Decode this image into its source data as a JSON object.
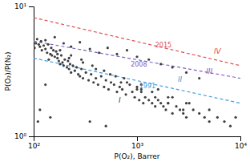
{
  "chart_data": {
    "type": "scatter",
    "log": true,
    "grid": false,
    "xlabel": "P(O₂), Barrer",
    "ylabel": "P(O₂)/P(N₂)",
    "xlim": [
      100,
      10000
    ],
    "ylim": [
      1,
      10
    ],
    "xticks": [
      {
        "value": 100,
        "label": "10²"
      },
      {
        "value": 1000,
        "label": "10³"
      },
      {
        "value": 10000,
        "label": "10⁴"
      }
    ],
    "yticks": [
      {
        "value": 1,
        "label": "10⁰"
      },
      {
        "value": 10,
        "label": "10¹"
      }
    ],
    "series": [
      {
        "type": "scatter",
        "marker": "circle",
        "color": "#404040",
        "x": [
          102,
          105,
          108,
          112,
          115,
          118,
          120,
          125,
          130,
          135,
          138,
          140,
          145,
          148,
          150,
          155,
          160,
          165,
          170,
          175,
          180,
          185,
          190,
          195,
          200,
          210,
          215,
          220,
          225,
          230,
          240,
          250,
          260,
          270,
          280,
          290,
          300,
          320,
          340,
          360,
          380,
          400,
          420,
          450,
          480,
          500,
          530,
          560,
          600,
          640,
          680,
          720,
          780,
          850,
          900,
          950,
          1000,
          1050,
          1100,
          1150,
          1200,
          1300,
          1400,
          1500,
          1600,
          1700,
          1800,
          1900,
          2000,
          2200,
          2400,
          2600,
          2800,
          3000,
          3500,
          4000,
          5000,
          6000,
          7000,
          8000,
          9000,
          110,
          130,
          160,
          195,
          230,
          280,
          350,
          430,
          520,
          640,
          800,
          1000,
          1300,
          1700,
          2200,
          3000,
          4000,
          130,
          170,
          220,
          300,
          400,
          550,
          750,
          1100,
          1600,
          2200,
          3200,
          115,
          145,
          180,
          230,
          290,
          370,
          480,
          620,
          800,
          1100,
          1500,
          2000,
          2800,
          4500,
          350,
          500,
          700,
          1000,
          1400,
          2000,
          3000,
          5000
        ],
        "values": [
          4.8,
          5.2,
          5.6,
          5.1,
          4.9,
          5.4,
          4.6,
          5.0,
          4.7,
          4.4,
          5.1,
          3.9,
          4.3,
          4.8,
          4.2,
          4.6,
          4.1,
          4.5,
          4.0,
          3.8,
          3.6,
          4.2,
          3.7,
          3.5,
          3.9,
          3.4,
          3.8,
          3.3,
          3.6,
          3.1,
          3.5,
          3.2,
          3.4,
          3.0,
          2.9,
          3.3,
          2.8,
          3.1,
          2.7,
          3.0,
          2.6,
          2.8,
          2.5,
          2.9,
          2.4,
          2.7,
          2.3,
          2.6,
          2.5,
          2.2,
          2.4,
          2.3,
          2.1,
          2.5,
          2.2,
          2.0,
          2.3,
          1.9,
          2.2,
          1.8,
          2.0,
          1.9,
          1.8,
          1.7,
          1.9,
          1.8,
          1.7,
          1.6,
          1.8,
          1.5,
          1.7,
          1.6,
          1.5,
          1.4,
          1.6,
          1.5,
          1.3,
          1.4,
          1.3,
          1.2,
          1.4,
          1.3,
          5.5,
          5.8,
          5.2,
          4.9,
          5.3,
          4.7,
          4.4,
          4.8,
          4.3,
          4.6,
          4.1,
          3.9,
          3.6,
          3.4,
          3.1,
          2.8,
          2.5,
          4.3,
          4.0,
          3.7,
          3.3,
          3.0,
          2.8,
          2.5,
          2.3,
          2.0,
          1.8,
          1.6,
          1.4,
          4.6,
          4.2,
          3.9,
          3.5,
          3.2,
          2.9,
          2.6,
          2.3,
          2.0,
          1.8,
          1.6,
          1.4,
          1.3,
          1.2,
          2.6,
          2.4,
          2.2,
          2.0,
          1.8,
          1.6
        ]
      },
      {
        "type": "line",
        "line_style": "dashed",
        "color": "#e05050",
        "x": [
          100,
          10000
        ],
        "values": [
          8.2,
          3.5
        ]
      },
      {
        "type": "line",
        "line_style": "dashed",
        "color": "#8060c0",
        "x": [
          100,
          10000
        ],
        "values": [
          5.4,
          2.8
        ]
      },
      {
        "type": "line",
        "line_style": "dashed",
        "color": "#40a0e0",
        "x": [
          100,
          10000
        ],
        "values": [
          4.0,
          1.8
        ]
      }
    ],
    "annotations": [
      {
        "text": "2015",
        "x": 1500,
        "y": 5.0,
        "color": "#e05050"
      },
      {
        "text": "2008",
        "x": 870,
        "y": 3.55,
        "color": "#8060c0"
      },
      {
        "text": "1991",
        "x": 1050,
        "y": 2.42,
        "color": "#40a0e0"
      }
    ],
    "region_labels": [
      {
        "text": "IV",
        "x": 6000,
        "y": 4.5,
        "color": "#e05050"
      },
      {
        "text": "III",
        "x": 5000,
        "y": 3.15,
        "color": "#8060c0"
      },
      {
        "text": "II",
        "x": 2600,
        "y": 2.72,
        "color": "#40a0e0"
      },
      {
        "text": "I",
        "x": 680,
        "y": 1.88,
        "color": "#404040"
      }
    ]
  }
}
